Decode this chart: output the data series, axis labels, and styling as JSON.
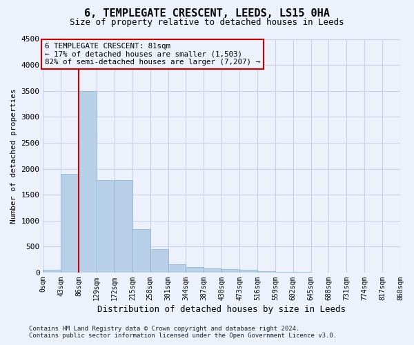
{
  "title": "6, TEMPLEGATE CRESCENT, LEEDS, LS15 0HA",
  "subtitle": "Size of property relative to detached houses in Leeds",
  "xlabel": "Distribution of detached houses by size in Leeds",
  "ylabel": "Number of detached properties",
  "footnote": "Contains HM Land Registry data © Crown copyright and database right 2024.\nContains public sector information licensed under the Open Government Licence v3.0.",
  "bar_color": "#b8d0e8",
  "bar_edge_color": "#88b0d0",
  "bin_labels": [
    "0sqm",
    "43sqm",
    "86sqm",
    "129sqm",
    "172sqm",
    "215sqm",
    "258sqm",
    "301sqm",
    "344sqm",
    "387sqm",
    "430sqm",
    "473sqm",
    "516sqm",
    "559sqm",
    "602sqm",
    "645sqm",
    "688sqm",
    "731sqm",
    "774sqm",
    "817sqm",
    "860sqm"
  ],
  "bar_heights": [
    50,
    1900,
    3500,
    1775,
    1775,
    840,
    450,
    160,
    100,
    80,
    60,
    50,
    30,
    15,
    8,
    5,
    3,
    2,
    1,
    1
  ],
  "ylim": [
    0,
    4500
  ],
  "yticks": [
    0,
    500,
    1000,
    1500,
    2000,
    2500,
    3000,
    3500,
    4000,
    4500
  ],
  "property_line_x": 2,
  "property_line_color": "#cc0000",
  "annotation_line1": "6 TEMPLEGATE CRESCENT: 81sqm",
  "annotation_line2": "← 17% of detached houses are smaller (1,503)",
  "annotation_line3": "82% of semi-detached houses are larger (7,207) →",
  "annotation_box_edgecolor": "#cc0000",
  "background_color": "#edf1fb",
  "grid_color": "#c8cfe8",
  "title_fontsize": 11,
  "subtitle_fontsize": 9,
  "ylabel_fontsize": 8,
  "xlabel_fontsize": 9,
  "tick_fontsize": 8,
  "xtick_fontsize": 7,
  "footnote_fontsize": 6.5
}
